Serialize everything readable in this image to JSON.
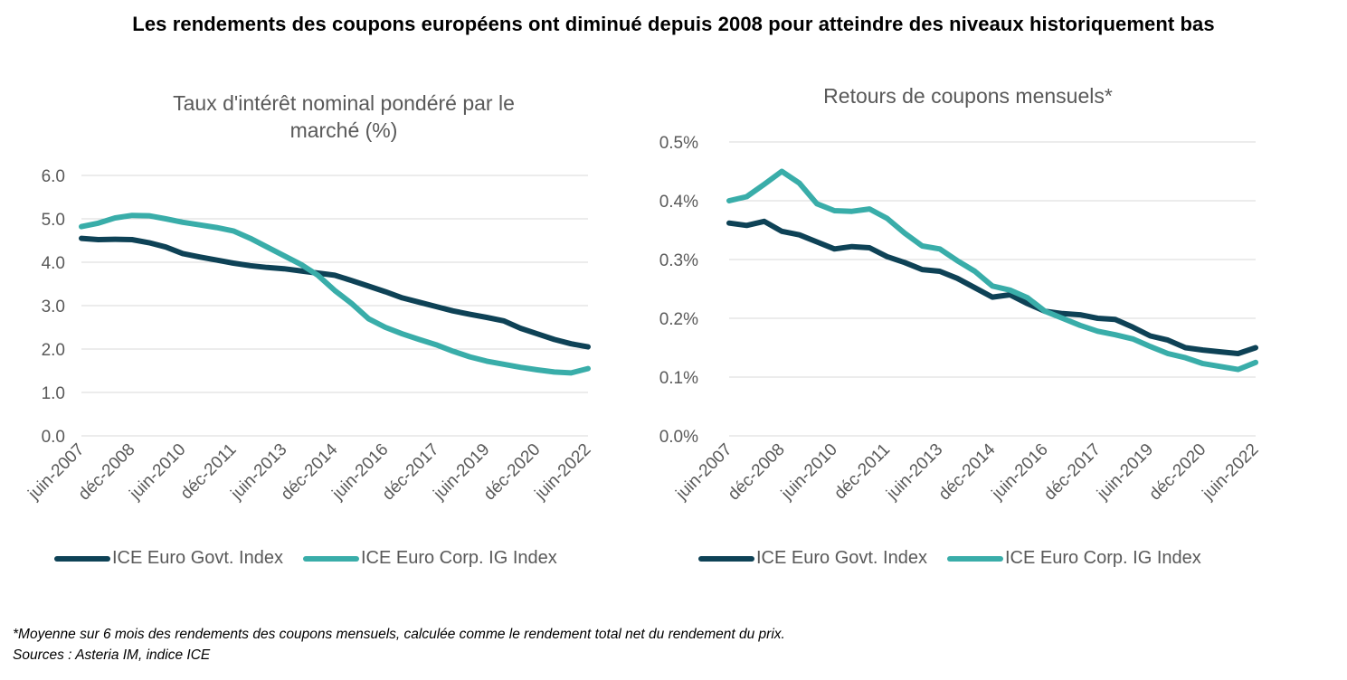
{
  "main_title": "Les rendements des coupons européens ont diminué depuis 2008 pour atteindre des niveaux historiquement bas",
  "footnotes": [
    "*Moyenne sur 6 mois des rendements des coupons mensuels, calculée comme le rendement total net du rendement du prix.",
    "Sources : Asteria IM, indice ICE"
  ],
  "colors": {
    "govt": "#0e4256",
    "corp": "#39ada9",
    "grid": "#d9d9d9",
    "text": "#595959"
  },
  "chart_data": [
    {
      "type": "line",
      "title": "Taux d'intérêt nominal pondéré par le marché (%)",
      "title_lines": [
        "Taux d'intérêt nominal pondéré par le",
        "marché (%)"
      ],
      "xlabel": "",
      "ylabel": "",
      "x_tick_labels": [
        "juin-2007",
        "déc-2008",
        "juin-2010",
        "déc-2011",
        "juin-2013",
        "déc-2014",
        "juin-2016",
        "déc-2017",
        "juin-2019",
        "déc-2020",
        "juin-2022"
      ],
      "y_tick_labels": [
        "0.0",
        "1.0",
        "2.0",
        "3.0",
        "4.0",
        "5.0",
        "6.0"
      ],
      "ylim": [
        0,
        6
      ],
      "y_ticks": [
        0,
        1,
        2,
        3,
        4,
        5,
        6
      ],
      "grid": true,
      "legend_position": "bottom",
      "x": [
        "2007-06",
        "2007-12",
        "2008-06",
        "2008-12",
        "2009-06",
        "2009-12",
        "2010-06",
        "2010-12",
        "2011-06",
        "2011-12",
        "2012-06",
        "2012-12",
        "2013-06",
        "2013-12",
        "2014-06",
        "2014-12",
        "2015-06",
        "2015-12",
        "2016-06",
        "2016-12",
        "2017-06",
        "2017-12",
        "2018-06",
        "2018-12",
        "2019-06",
        "2019-12",
        "2020-06",
        "2020-12",
        "2021-06",
        "2021-12",
        "2022-06"
      ],
      "series": [
        {
          "name": "ICE Euro Govt. Index",
          "color_key": "govt",
          "values": [
            4.55,
            4.52,
            4.53,
            4.52,
            4.45,
            4.35,
            4.2,
            4.12,
            4.05,
            3.98,
            3.92,
            3.88,
            3.85,
            3.8,
            3.75,
            3.7,
            3.58,
            3.45,
            3.32,
            3.18,
            3.08,
            2.98,
            2.88,
            2.8,
            2.73,
            2.65,
            2.48,
            2.35,
            2.22,
            2.12,
            2.05
          ]
        },
        {
          "name": "ICE Euro Corp. IG Index",
          "color_key": "corp",
          "values": [
            4.82,
            4.9,
            5.02,
            5.08,
            5.07,
            5.0,
            4.92,
            4.86,
            4.8,
            4.72,
            4.55,
            4.35,
            4.15,
            3.95,
            3.7,
            3.35,
            3.05,
            2.7,
            2.5,
            2.35,
            2.22,
            2.1,
            1.95,
            1.82,
            1.72,
            1.65,
            1.58,
            1.52,
            1.47,
            1.45,
            1.55
          ]
        }
      ]
    },
    {
      "type": "line",
      "title": "Retours de coupons mensuels*",
      "title_lines": [
        "Retours de coupons mensuels*"
      ],
      "xlabel": "",
      "ylabel": "",
      "x_tick_labels": [
        "juin-2007",
        "déc-2008",
        "juin-2010",
        "déc-2011",
        "juin-2013",
        "déc-2014",
        "juin-2016",
        "déc-2017",
        "juin-2019",
        "déc-2020",
        "juin-2022"
      ],
      "y_tick_labels": [
        "0.0%",
        "0.1%",
        "0.2%",
        "0.3%",
        "0.4%",
        "0.5%"
      ],
      "ylim": [
        0,
        0.5
      ],
      "y_ticks": [
        0,
        0.1,
        0.2,
        0.3,
        0.4,
        0.5
      ],
      "grid": true,
      "legend_position": "bottom",
      "x": [
        "2007-06",
        "2007-12",
        "2008-06",
        "2008-12",
        "2009-06",
        "2009-12",
        "2010-06",
        "2010-12",
        "2011-06",
        "2011-12",
        "2012-06",
        "2012-12",
        "2013-06",
        "2013-12",
        "2014-06",
        "2014-12",
        "2015-06",
        "2015-12",
        "2016-06",
        "2016-12",
        "2017-06",
        "2017-12",
        "2018-06",
        "2018-12",
        "2019-06",
        "2019-12",
        "2020-06",
        "2020-12",
        "2021-06",
        "2021-12",
        "2022-06"
      ],
      "series": [
        {
          "name": "ICE Euro Govt. Index",
          "color_key": "govt",
          "values": [
            0.362,
            0.358,
            0.365,
            0.348,
            0.342,
            0.33,
            0.318,
            0.322,
            0.32,
            0.305,
            0.295,
            0.283,
            0.28,
            0.268,
            0.252,
            0.236,
            0.24,
            0.225,
            0.212,
            0.208,
            0.206,
            0.2,
            0.198,
            0.185,
            0.17,
            0.163,
            0.15,
            0.146,
            0.143,
            0.14,
            0.15
          ]
        },
        {
          "name": "ICE Euro Corp. IG Index",
          "color_key": "corp",
          "values": [
            0.4,
            0.407,
            0.428,
            0.45,
            0.43,
            0.395,
            0.383,
            0.382,
            0.386,
            0.37,
            0.345,
            0.323,
            0.318,
            0.298,
            0.28,
            0.255,
            0.248,
            0.235,
            0.212,
            0.2,
            0.188,
            0.178,
            0.172,
            0.165,
            0.152,
            0.14,
            0.133,
            0.123,
            0.118,
            0.113,
            0.125
          ]
        }
      ]
    }
  ]
}
